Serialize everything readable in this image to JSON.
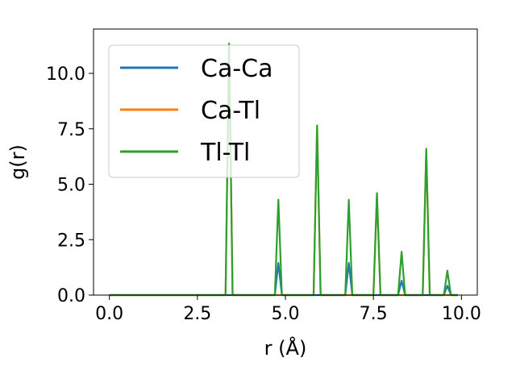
{
  "chart_data": {
    "type": "line",
    "title": "",
    "xlabel": "r (Å)",
    "ylabel": "g(r)",
    "xlim": [
      -0.45,
      10.45
    ],
    "ylim": [
      0,
      12.0
    ],
    "xticks": [
      0.0,
      2.5,
      5.0,
      7.5,
      10.0
    ],
    "xtick_labels": [
      "0.0",
      "2.5",
      "5.0",
      "7.5",
      "10.0"
    ],
    "yticks": [
      0.0,
      2.5,
      5.0,
      7.5,
      10.0
    ],
    "ytick_labels": [
      "0.0",
      "2.5",
      "5.0",
      "7.5",
      "10.0"
    ],
    "legend_position": "top-left",
    "grid": false,
    "series": [
      {
        "name": "Ca-Ca",
        "color": "#1f77b4",
        "x": [
          0.0,
          4.7,
          4.8,
          4.9,
          6.7,
          6.8,
          6.9,
          8.2,
          8.3,
          8.4,
          9.5,
          9.6,
          9.7,
          9.9
        ],
        "y": [
          0,
          0,
          1.45,
          0,
          0,
          1.45,
          0,
          0,
          0.65,
          0,
          0,
          0.42,
          0,
          0
        ]
      },
      {
        "name": "Ca-Tl",
        "color": "#ff7f0e",
        "x": [
          0.0,
          3.3,
          3.4,
          3.5,
          5.8,
          5.9,
          6.0,
          7.5,
          7.6,
          7.7,
          8.9,
          9.0,
          9.1,
          9.9
        ],
        "y": [
          0,
          0,
          11.3,
          0,
          0,
          7.6,
          0,
          0,
          4.5,
          0,
          0,
          6.5,
          0,
          0
        ]
      },
      {
        "name": "Tl-Tl",
        "color": "#2ca02c",
        "x": [
          0.0,
          3.3,
          3.4,
          3.5,
          4.7,
          4.8,
          4.9,
          5.8,
          5.9,
          6.0,
          6.7,
          6.8,
          6.9,
          7.5,
          7.6,
          7.7,
          8.2,
          8.3,
          8.4,
          8.9,
          9.0,
          9.1,
          9.5,
          9.6,
          9.7,
          9.9
        ],
        "y": [
          0,
          0,
          11.35,
          0,
          0,
          4.3,
          0,
          0,
          7.65,
          0,
          0,
          4.3,
          0,
          0,
          4.6,
          0,
          0,
          1.95,
          0,
          0,
          6.6,
          0,
          0,
          1.1,
          0,
          0
        ]
      }
    ]
  }
}
